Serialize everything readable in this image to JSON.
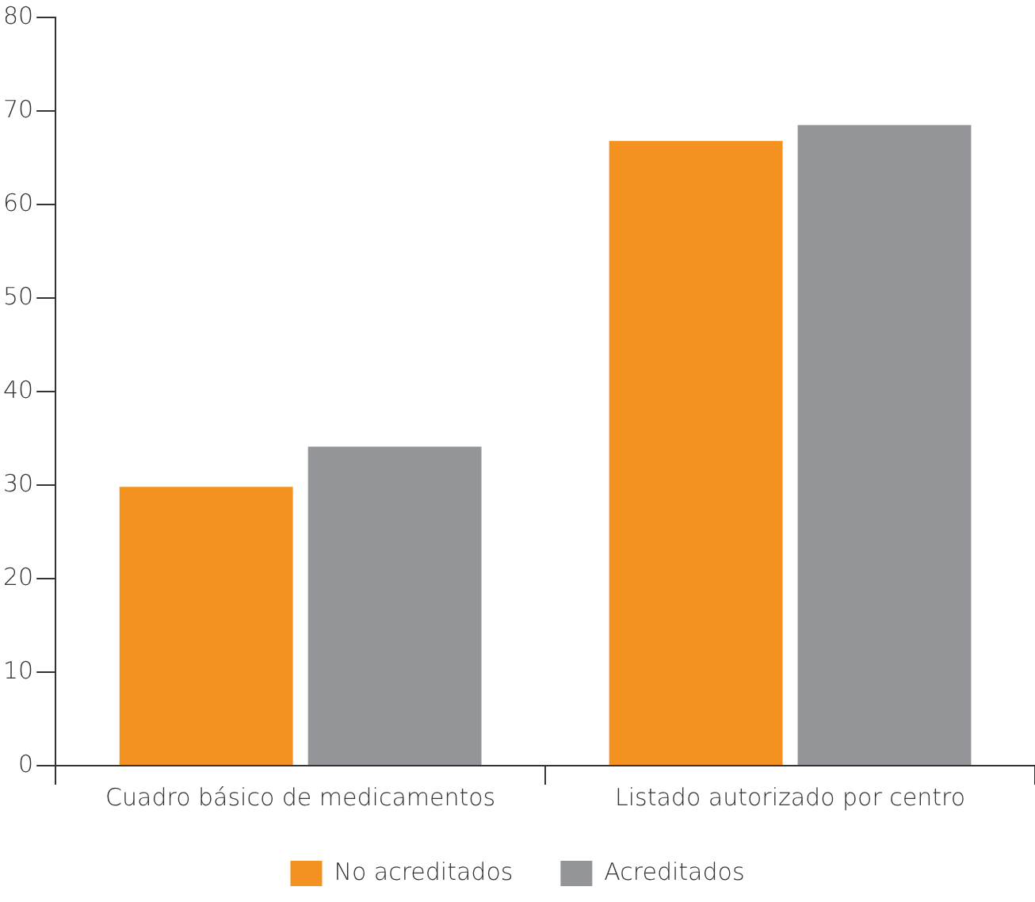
{
  "chart_data": {
    "type": "bar",
    "categories": [
      "Cuadro básico de medicamentos",
      "Listado autorizado por centro"
    ],
    "series": [
      {
        "name": "No acreditados",
        "color": "#f39220",
        "values": [
          29.8,
          66.8
        ]
      },
      {
        "name": "Acreditados",
        "color": "#939598",
        "values": [
          34.1,
          68.5
        ]
      }
    ],
    "ylim": [
      0,
      80
    ],
    "yticks": [
      0,
      10,
      20,
      30,
      40,
      50,
      60,
      70,
      80
    ],
    "grid": false,
    "legend": "bottom"
  }
}
